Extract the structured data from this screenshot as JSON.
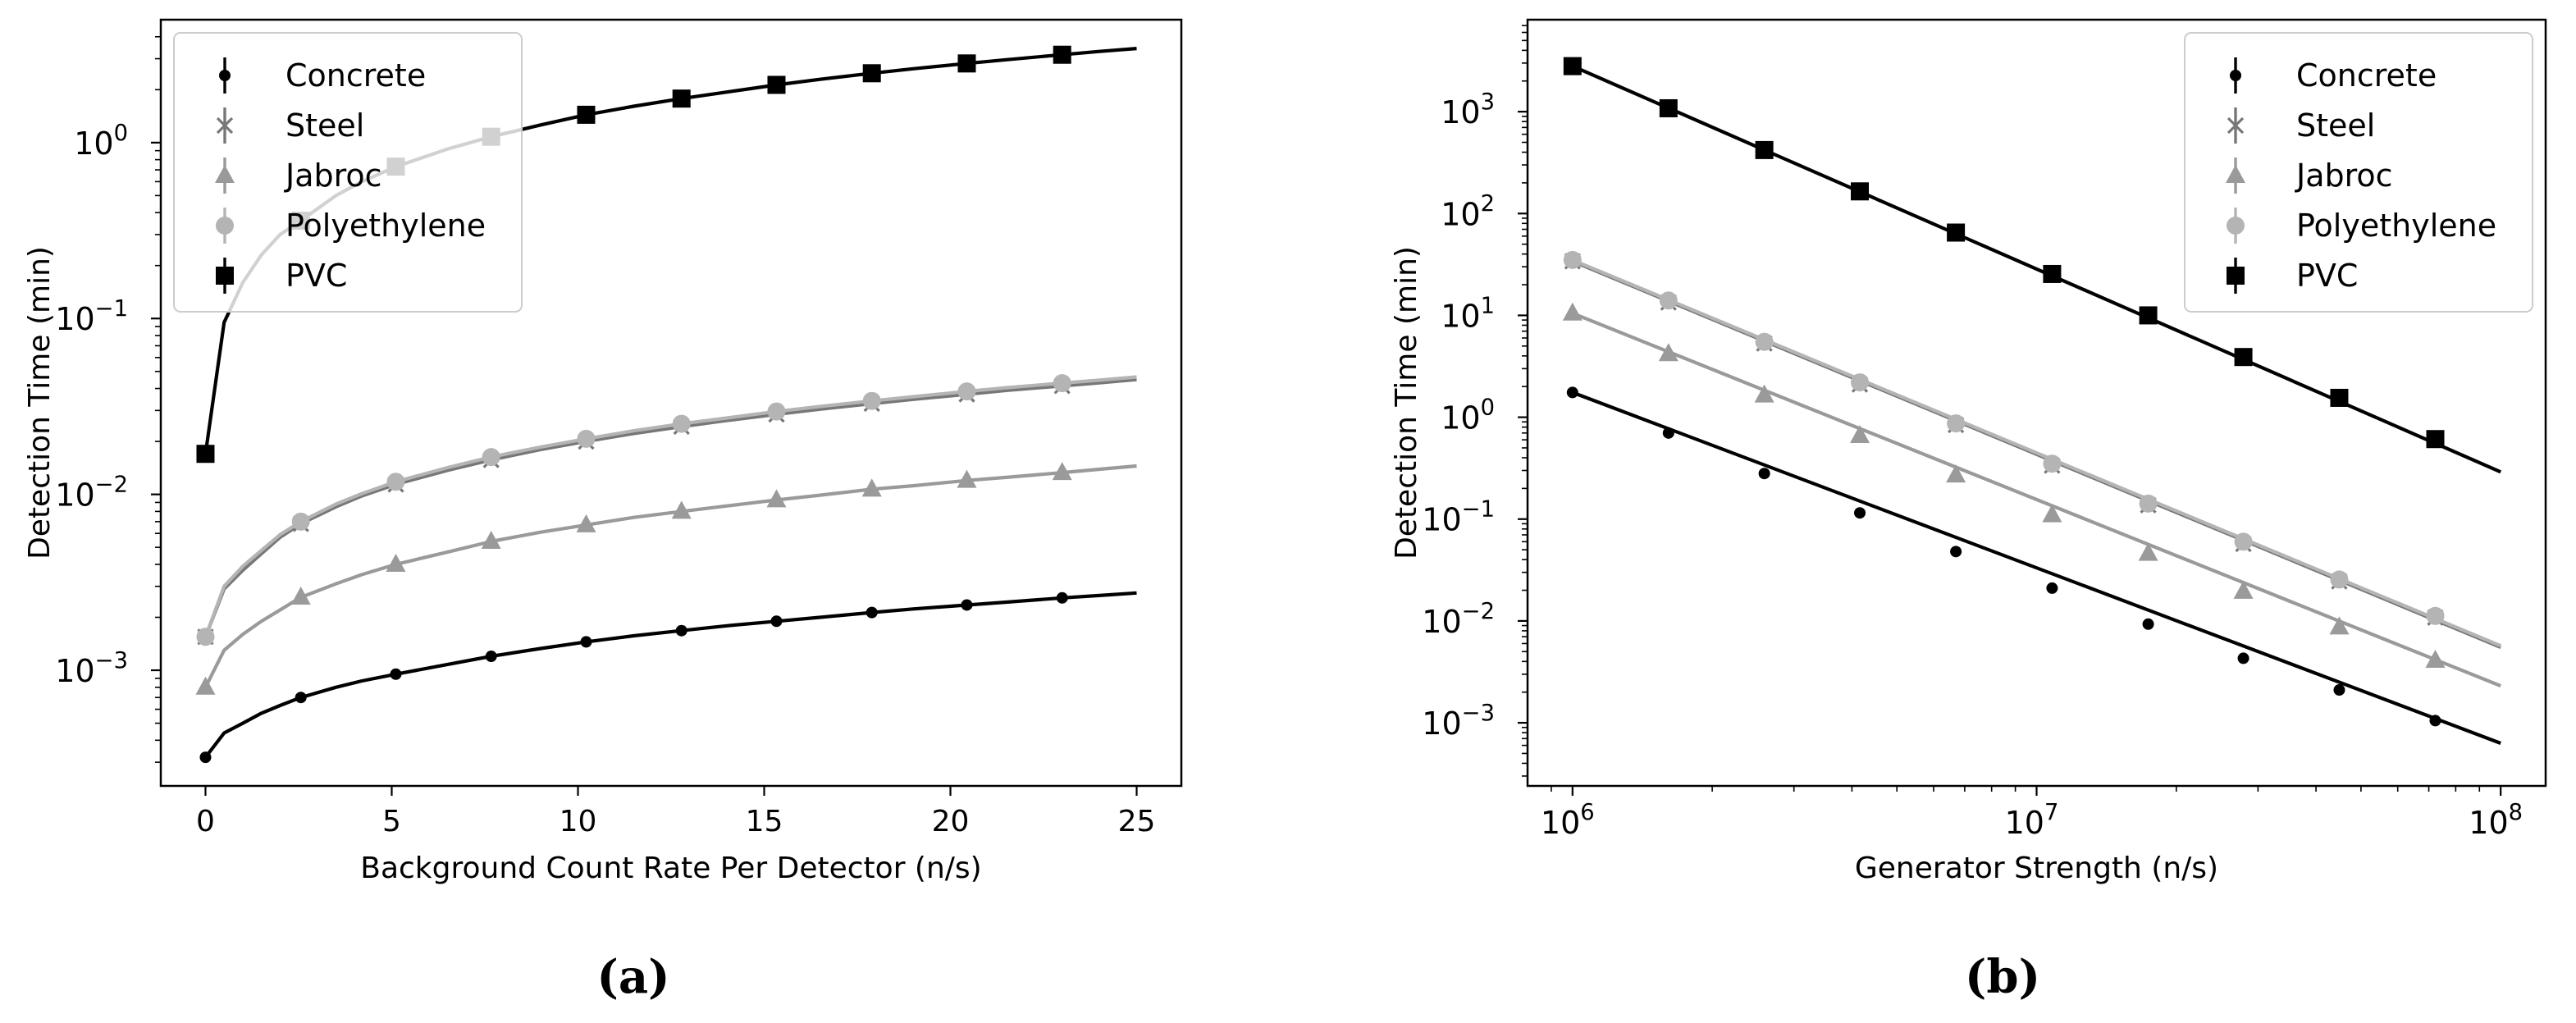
{
  "chart_data": [
    {
      "type": "line",
      "panel_label": "(a)",
      "xlabel": "Background Count Rate Per Detector (n/s)",
      "ylabel": "Detection Time (min)",
      "xscale": "linear",
      "yscale": "log",
      "xlim": [
        -1.2,
        26.2
      ],
      "ylim": [
        0.00022,
        5.0
      ],
      "xticks": [
        0,
        5,
        10,
        15,
        20,
        25
      ],
      "xtick_labels": [
        "0",
        "5",
        "10",
        "15",
        "20",
        "25"
      ],
      "yticks": [
        0.001,
        0.01,
        0.1,
        1
      ],
      "ytick_labels": [
        [
          "10",
          "−3"
        ],
        [
          "10",
          "−2"
        ],
        [
          "10",
          "−1"
        ],
        [
          "10",
          "0"
        ]
      ],
      "legend_position": "top-left",
      "grid": false,
      "series": [
        {
          "name": "Concrete",
          "marker": "dot",
          "color": "#000000",
          "x": [
            0,
            2.56,
            5.11,
            7.67,
            10.22,
            12.78,
            15.33,
            17.89,
            20.44,
            23.0
          ],
          "values": [
            0.00032,
            0.0007,
            0.00095,
            0.0012,
            0.00145,
            0.00168,
            0.0019,
            0.00213,
            0.00235,
            0.00258
          ],
          "curve_x": [
            0,
            0.5,
            1,
            1.5,
            2,
            2.56,
            3.5,
            4.2,
            5.11,
            6.5,
            7.67,
            9,
            10.22,
            11.5,
            12.78,
            14,
            15.33,
            16.5,
            17.89,
            19,
            20.44,
            21.5,
            23.0,
            24,
            25
          ],
          "curve_y": [
            0.00032,
            0.00044,
            0.0005,
            0.00057,
            0.00063,
            0.0007,
            0.0008,
            0.00087,
            0.00095,
            0.00108,
            0.0012,
            0.00133,
            0.00145,
            0.00157,
            0.00168,
            0.00179,
            0.0019,
            0.002,
            0.00213,
            0.00223,
            0.00235,
            0.00244,
            0.00258,
            0.00266,
            0.00275
          ]
        },
        {
          "name": "Steel",
          "marker": "x",
          "color": "#777777",
          "x": [
            0,
            2.56,
            5.11,
            7.67,
            10.22,
            12.78,
            15.33,
            17.89,
            20.44,
            23.0
          ],
          "values": [
            0.00155,
            0.0068,
            0.0114,
            0.0157,
            0.02,
            0.0243,
            0.0285,
            0.0328,
            0.0371,
            0.0414
          ],
          "curve_x": [
            0,
            0.5,
            1,
            1.5,
            2,
            2.56,
            3.5,
            4.2,
            5.11,
            6.5,
            7.67,
            9,
            10.22,
            11.5,
            12.78,
            14,
            15.33,
            16.5,
            17.89,
            19,
            20.44,
            21.5,
            23.0,
            24,
            25
          ],
          "curve_y": [
            0.00155,
            0.0029,
            0.0037,
            0.0046,
            0.0057,
            0.0068,
            0.0085,
            0.0098,
            0.0114,
            0.0137,
            0.0157,
            0.018,
            0.02,
            0.0222,
            0.0243,
            0.0263,
            0.0285,
            0.0305,
            0.0328,
            0.0347,
            0.0371,
            0.039,
            0.0414,
            0.0431,
            0.045
          ]
        },
        {
          "name": "Jabroc",
          "marker": "triangle",
          "color": "#9a9a9a",
          "x": [
            0,
            2.56,
            5.11,
            7.67,
            10.22,
            12.78,
            15.33,
            17.89,
            20.44,
            23.0
          ],
          "values": [
            0.0008,
            0.0026,
            0.004,
            0.0054,
            0.0067,
            0.008,
            0.0093,
            0.0107,
            0.012,
            0.0133
          ],
          "curve_x": [
            0,
            0.5,
            1,
            1.5,
            2,
            2.56,
            3.5,
            4.2,
            5.11,
            6.5,
            7.67,
            9,
            10.22,
            11.5,
            12.78,
            14,
            15.33,
            16.5,
            17.89,
            19,
            20.44,
            21.5,
            23.0,
            24,
            25
          ],
          "curve_y": [
            0.0008,
            0.0013,
            0.0016,
            0.0019,
            0.0022,
            0.0026,
            0.0031,
            0.0035,
            0.004,
            0.0047,
            0.0054,
            0.0061,
            0.0067,
            0.0074,
            0.008,
            0.0086,
            0.0093,
            0.0099,
            0.0107,
            0.0112,
            0.012,
            0.0125,
            0.0133,
            0.0139,
            0.0145
          ]
        },
        {
          "name": "Polyethylene",
          "marker": "circle",
          "color": "#b4b4b4",
          "x": [
            0,
            2.56,
            5.11,
            7.67,
            10.22,
            12.78,
            15.33,
            17.89,
            20.44,
            23.0
          ],
          "values": [
            0.00155,
            0.007,
            0.0118,
            0.0163,
            0.0207,
            0.0252,
            0.0296,
            0.034,
            0.0385,
            0.0429
          ],
          "curve_x": [
            0,
            0.5,
            1,
            1.5,
            2,
            2.56,
            3.5,
            4.2,
            5.11,
            6.5,
            7.67,
            9,
            10.22,
            11.5,
            12.78,
            14,
            15.33,
            16.5,
            17.89,
            19,
            20.44,
            21.5,
            23.0,
            24,
            25
          ],
          "curve_y": [
            0.00155,
            0.003,
            0.0039,
            0.0048,
            0.0059,
            0.007,
            0.0088,
            0.0101,
            0.0118,
            0.0142,
            0.0163,
            0.0186,
            0.0207,
            0.023,
            0.0252,
            0.0272,
            0.0296,
            0.0316,
            0.034,
            0.0359,
            0.0385,
            0.0404,
            0.0429,
            0.0446,
            0.0465
          ]
        },
        {
          "name": "PVC",
          "marker": "square",
          "color": "#000000",
          "x": [
            0,
            2.56,
            5.11,
            7.67,
            10.22,
            12.78,
            15.33,
            17.89,
            20.44,
            23.0
          ],
          "values": [
            0.017,
            0.36,
            0.73,
            1.08,
            1.44,
            1.78,
            2.13,
            2.48,
            2.82,
            3.16
          ],
          "curve_x": [
            0,
            0.5,
            1,
            1.5,
            2,
            2.56,
            3.5,
            4.2,
            5.11,
            6.5,
            7.67,
            9,
            10.22,
            11.5,
            12.78,
            14,
            15.33,
            16.5,
            17.89,
            19,
            20.44,
            21.5,
            23.0,
            24,
            25
          ],
          "curve_y": [
            0.017,
            0.095,
            0.16,
            0.23,
            0.3,
            0.36,
            0.5,
            0.6,
            0.73,
            0.92,
            1.08,
            1.26,
            1.44,
            1.61,
            1.78,
            1.94,
            2.13,
            2.29,
            2.48,
            2.63,
            2.82,
            2.96,
            3.16,
            3.3,
            3.43
          ]
        }
      ]
    },
    {
      "type": "line",
      "panel_label": "(b)",
      "xlabel": "Generator Strength (n/s)",
      "ylabel": "Detection Time (min)",
      "xscale": "log",
      "yscale": "log",
      "xlim": [
        800000,
        125000000
      ],
      "ylim": [
        0.00024,
        8000
      ],
      "xticks": [
        1000000,
        10000000,
        100000000
      ],
      "xtick_labels": [
        [
          "10",
          "6"
        ],
        [
          "10",
          "7"
        ],
        [
          "10",
          "8"
        ]
      ],
      "yticks": [
        0.001,
        0.01,
        0.1,
        1,
        10,
        100,
        1000
      ],
      "ytick_labels": [
        [
          "10",
          "−3"
        ],
        [
          "10",
          "−2"
        ],
        [
          "10",
          "−1"
        ],
        [
          "10",
          "0"
        ],
        [
          "10",
          "1"
        ],
        [
          "10",
          "2"
        ],
        [
          "10",
          "3"
        ]
      ],
      "legend_position": "top-right",
      "grid": false,
      "series": [
        {
          "name": "Concrete",
          "marker": "dot",
          "color": "#000000",
          "x": [
            1000000,
            1610000,
            2590000,
            4160000,
            6700000,
            10800000,
            17400000,
            27900000,
            44900000,
            72300000
          ],
          "values": [
            1.75,
            0.7,
            0.28,
            0.115,
            0.048,
            0.021,
            0.0093,
            0.0043,
            0.0021,
            0.00105
          ],
          "curve_x": [
            1000000,
            100000000
          ],
          "curve_y": [
            1.75,
            0.00063
          ]
        },
        {
          "name": "Steel",
          "marker": "x",
          "color": "#777777",
          "x": [
            1000000,
            1610000,
            2590000,
            4160000,
            6700000,
            10800000,
            17400000,
            27900000,
            44900000,
            72300000
          ],
          "values": [
            34,
            13.4,
            5.3,
            2.1,
            0.84,
            0.335,
            0.137,
            0.057,
            0.0245,
            0.0108
          ],
          "curve_x": [
            1000000,
            100000000
          ],
          "curve_y": [
            34,
            0.0055
          ]
        },
        {
          "name": "Jabroc",
          "marker": "triangle",
          "color": "#9a9a9a",
          "x": [
            1000000,
            1610000,
            2590000,
            4160000,
            6700000,
            10800000,
            17400000,
            27900000,
            44900000,
            72300000
          ],
          "values": [
            10.5,
            4.2,
            1.65,
            0.66,
            0.27,
            0.11,
            0.046,
            0.0195,
            0.0087,
            0.0041
          ],
          "curve_x": [
            1000000,
            100000000
          ],
          "curve_y": [
            10.5,
            0.0023
          ]
        },
        {
          "name": "Polyethylene",
          "marker": "circle",
          "color": "#b4b4b4",
          "x": [
            1000000,
            1610000,
            2590000,
            4160000,
            6700000,
            10800000,
            17400000,
            27900000,
            44900000,
            72300000
          ],
          "values": [
            35,
            14,
            5.5,
            2.2,
            0.87,
            0.35,
            0.142,
            0.06,
            0.0255,
            0.0112
          ],
          "curve_x": [
            1000000,
            100000000
          ],
          "curve_y": [
            35,
            0.0057
          ]
        },
        {
          "name": "PVC",
          "marker": "square",
          "color": "#000000",
          "x": [
            1000000,
            1610000,
            2590000,
            4160000,
            6700000,
            10800000,
            17400000,
            27900000,
            44900000,
            72300000
          ],
          "values": [
            2800,
            1080,
            420,
            165,
            65,
            25.5,
            10,
            3.9,
            1.55,
            0.61
          ],
          "curve_x": [
            1000000,
            100000000
          ],
          "curve_y": [
            2800,
            0.29
          ]
        }
      ]
    }
  ]
}
